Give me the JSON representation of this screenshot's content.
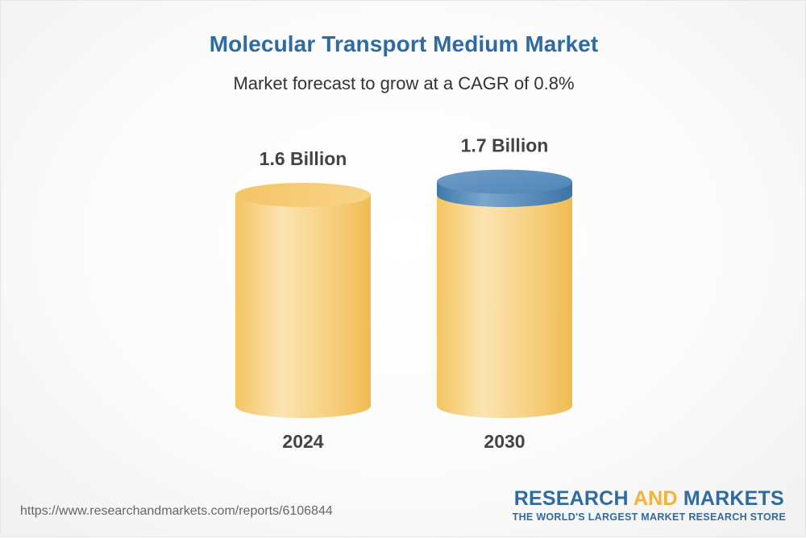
{
  "title": "Molecular Transport Medium Market",
  "subtitle": "Market forecast to grow at a CAGR of 0.8%",
  "source_url": "https://www.researchandmarkets.com/reports/6106844",
  "brand": {
    "name_part1": "RESEARCH ",
    "name_part2": "AND",
    "name_part3": " MARKETS",
    "tagline": "THE WORLD'S LARGEST MARKET RESEARCH STORE"
  },
  "colors": {
    "title": "#2f6ba3",
    "cylinder_body": "#f6c867",
    "cylinder_highlight": "#fbe3b0",
    "growth_cap": "#4f86b8",
    "label": "#444444",
    "brand_accent": "#f2b23b"
  },
  "chart_data": {
    "type": "bar",
    "style": "3d-cylinder",
    "categories": [
      "2024",
      "2030"
    ],
    "values": [
      1.6,
      1.7
    ],
    "value_labels": [
      "1.6 Billion",
      "1.7 Billion"
    ],
    "unit": "Billion",
    "cagr": "0.8%"
  }
}
